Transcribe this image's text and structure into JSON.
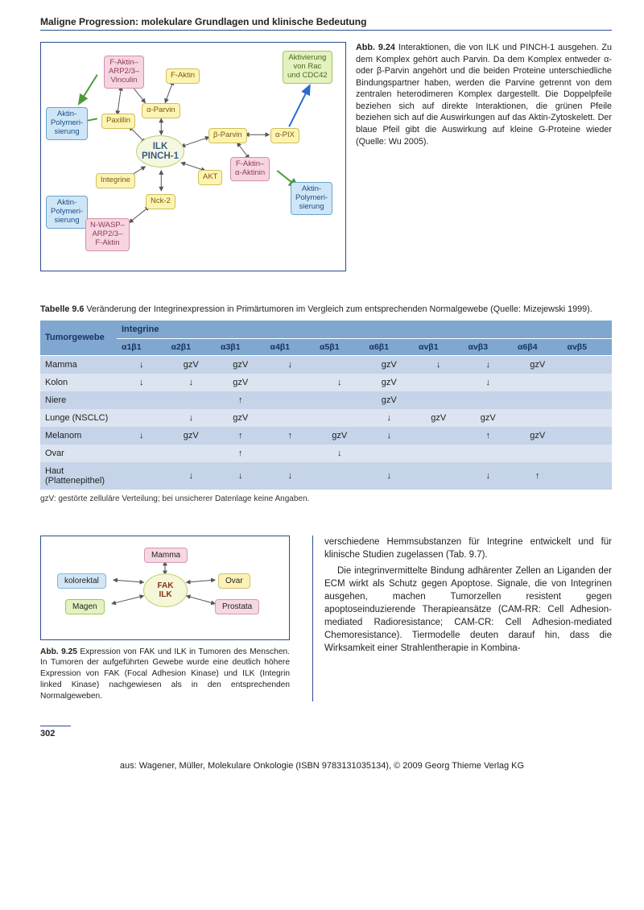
{
  "page": {
    "title": "Maligne Progression: molekulare Grundlagen und klinische Bedeutung",
    "number": "302",
    "footer": "aus: Wagener, Müller, Molekulare Onkologie (ISBN 9783131035134), © 2009 Georg Thieme Verlag KG"
  },
  "fig924": {
    "lead": "Abb. 9.24",
    "caption": "Interaktionen, die von ILK und PINCH-1 ausgehen. Zu dem Komplex gehört auch Parvin. Da dem Komplex entweder α- oder β-Parvin angehört und die beiden Proteine unterschiedliche Bindungspartner haben, werden die Parvine getrennt von dem zentralen heterodimeren Komplex dargestellt. Die Doppelpfeile beziehen sich auf direkte Interaktionen, die grünen Pfeile beziehen sich auf die Auswirkungen auf das Aktin-Zytoskelett. Der blaue Pfeil gibt die Auswirkung auf kleine G-Proteine wieder (Quelle: Wu 2005).",
    "colors": {
      "blue": "#cfe6f7",
      "green": "#e4f2c0",
      "yellow": "#fdf4b3",
      "pink": "#f7d5e0",
      "center": "#f5f8e0",
      "border": "#2a4f8f"
    },
    "nodes": {
      "aktinPoly1": "Aktin-\nPolymeri-\nsierung",
      "aktinPoly2": "Aktin-\nPolymeri-\nsierung",
      "aktinPoly3": "Aktin-\nPolymeri-\nsierung",
      "activRac": "Aktivierung\nvon Rac\nund CDC42",
      "faktinArpVinc": "F-Aktin–\nARP2/3–\nVinculin",
      "faktin": "F-Aktin",
      "alphaParvin": "α-Parvin",
      "paxillin": "Paxillin",
      "betaParvin": "β-Parvin",
      "alphaPix": "α-PIX",
      "faktinAktinin": "F-Aktin–\nα-Aktinin",
      "akt": "AKT",
      "integrine": "Integrine",
      "nck2": "Nck-2",
      "nwasp": "N-WASP–\nARP2/3–\nF-Aktin",
      "center1": "ILK",
      "center2": "PINCH-1"
    }
  },
  "table": {
    "titleLead": "Tabelle 9.6",
    "title": "Veränderung der Integrinexpression in Primärtumoren im Vergleich zum entsprechenden Normalgewebe (Quelle: Mizejewski 1999).",
    "head1": "Tumorgewebe",
    "head2": "Integrine",
    "columns": [
      "α1β1",
      "α2β1",
      "α3β1",
      "α4β1",
      "α5β1",
      "α6β1",
      "αvβ1",
      "αvβ3",
      "α6β4",
      "αvβ5"
    ],
    "rows": [
      {
        "tissue": "Mamma",
        "cells": [
          "↓",
          "gzV",
          "gzV",
          "↓",
          "",
          "gzV",
          "↓",
          "↓",
          "gzV",
          ""
        ]
      },
      {
        "tissue": "Kolon",
        "cells": [
          "↓",
          "↓",
          "gzV",
          "",
          "↓",
          "gzV",
          "",
          "↓",
          "",
          ""
        ]
      },
      {
        "tissue": "Niere",
        "cells": [
          "",
          "",
          "↑",
          "",
          "",
          "gzV",
          "",
          "",
          "",
          ""
        ]
      },
      {
        "tissue": "Lunge (NSCLC)",
        "cells": [
          "",
          "↓",
          "gzV",
          "",
          "",
          "↓",
          "gzV",
          "gzV",
          "",
          ""
        ]
      },
      {
        "tissue": "Melanom",
        "cells": [
          "↓",
          "gzV",
          "↑",
          "↑",
          "gzV",
          "↓",
          "",
          "↑",
          "gzV",
          ""
        ]
      },
      {
        "tissue": "Ovar",
        "cells": [
          "",
          "",
          "↑",
          "",
          "↓",
          "",
          "",
          "",
          "",
          ""
        ]
      },
      {
        "tissue": "Haut (Plattenepithel)",
        "cells": [
          "",
          "↓",
          "↓",
          "↓",
          "",
          "↓",
          "",
          "↓",
          "↑",
          ""
        ]
      }
    ],
    "footnote": "gzV: gestörte zelluläre Verteilung; bei unsicherer Datenlage keine Angaben."
  },
  "fig925": {
    "lead": "Abb. 9.25",
    "caption": "Expression von FAK und ILK in Tumoren des Menschen. In Tumoren der aufgeführten Gewebe wurde eine deutlich höhere Expression von FAK (Focal Adhesion Kinase) und ILK (Integrin linked Kinase) nachgewiesen als in den entsprechenden Normalgeweben.",
    "nodes": {
      "mamma": "Mamma",
      "kolorektal": "kolorektal",
      "magen": "Magen",
      "ovar": "Ovar",
      "prostata": "Prostata",
      "center1": "FAK",
      "center2": "ILK"
    }
  },
  "bodytext": {
    "p1": "verschiedene Hemmsubstanzen für Integrine entwickelt und für klinische Studien zugelassen (Tab. 9.7).",
    "p2": "Die integrinvermittelte Bindung adhärenter Zellen an Liganden der ECM wirkt als Schutz gegen Apoptose. Signale, die von Integrinen ausgehen, machen Tumorzellen resistent gegen apoptoseinduzierende Therapieansätze (CAM-RR: Cell Adhesion-mediated Radioresistance; CAM-CR: Cell Adhesion-mediated Chemoresistance). Tiermodelle deuten darauf hin, dass die Wirksamkeit einer Strahlentherapie in Kombina-"
  }
}
